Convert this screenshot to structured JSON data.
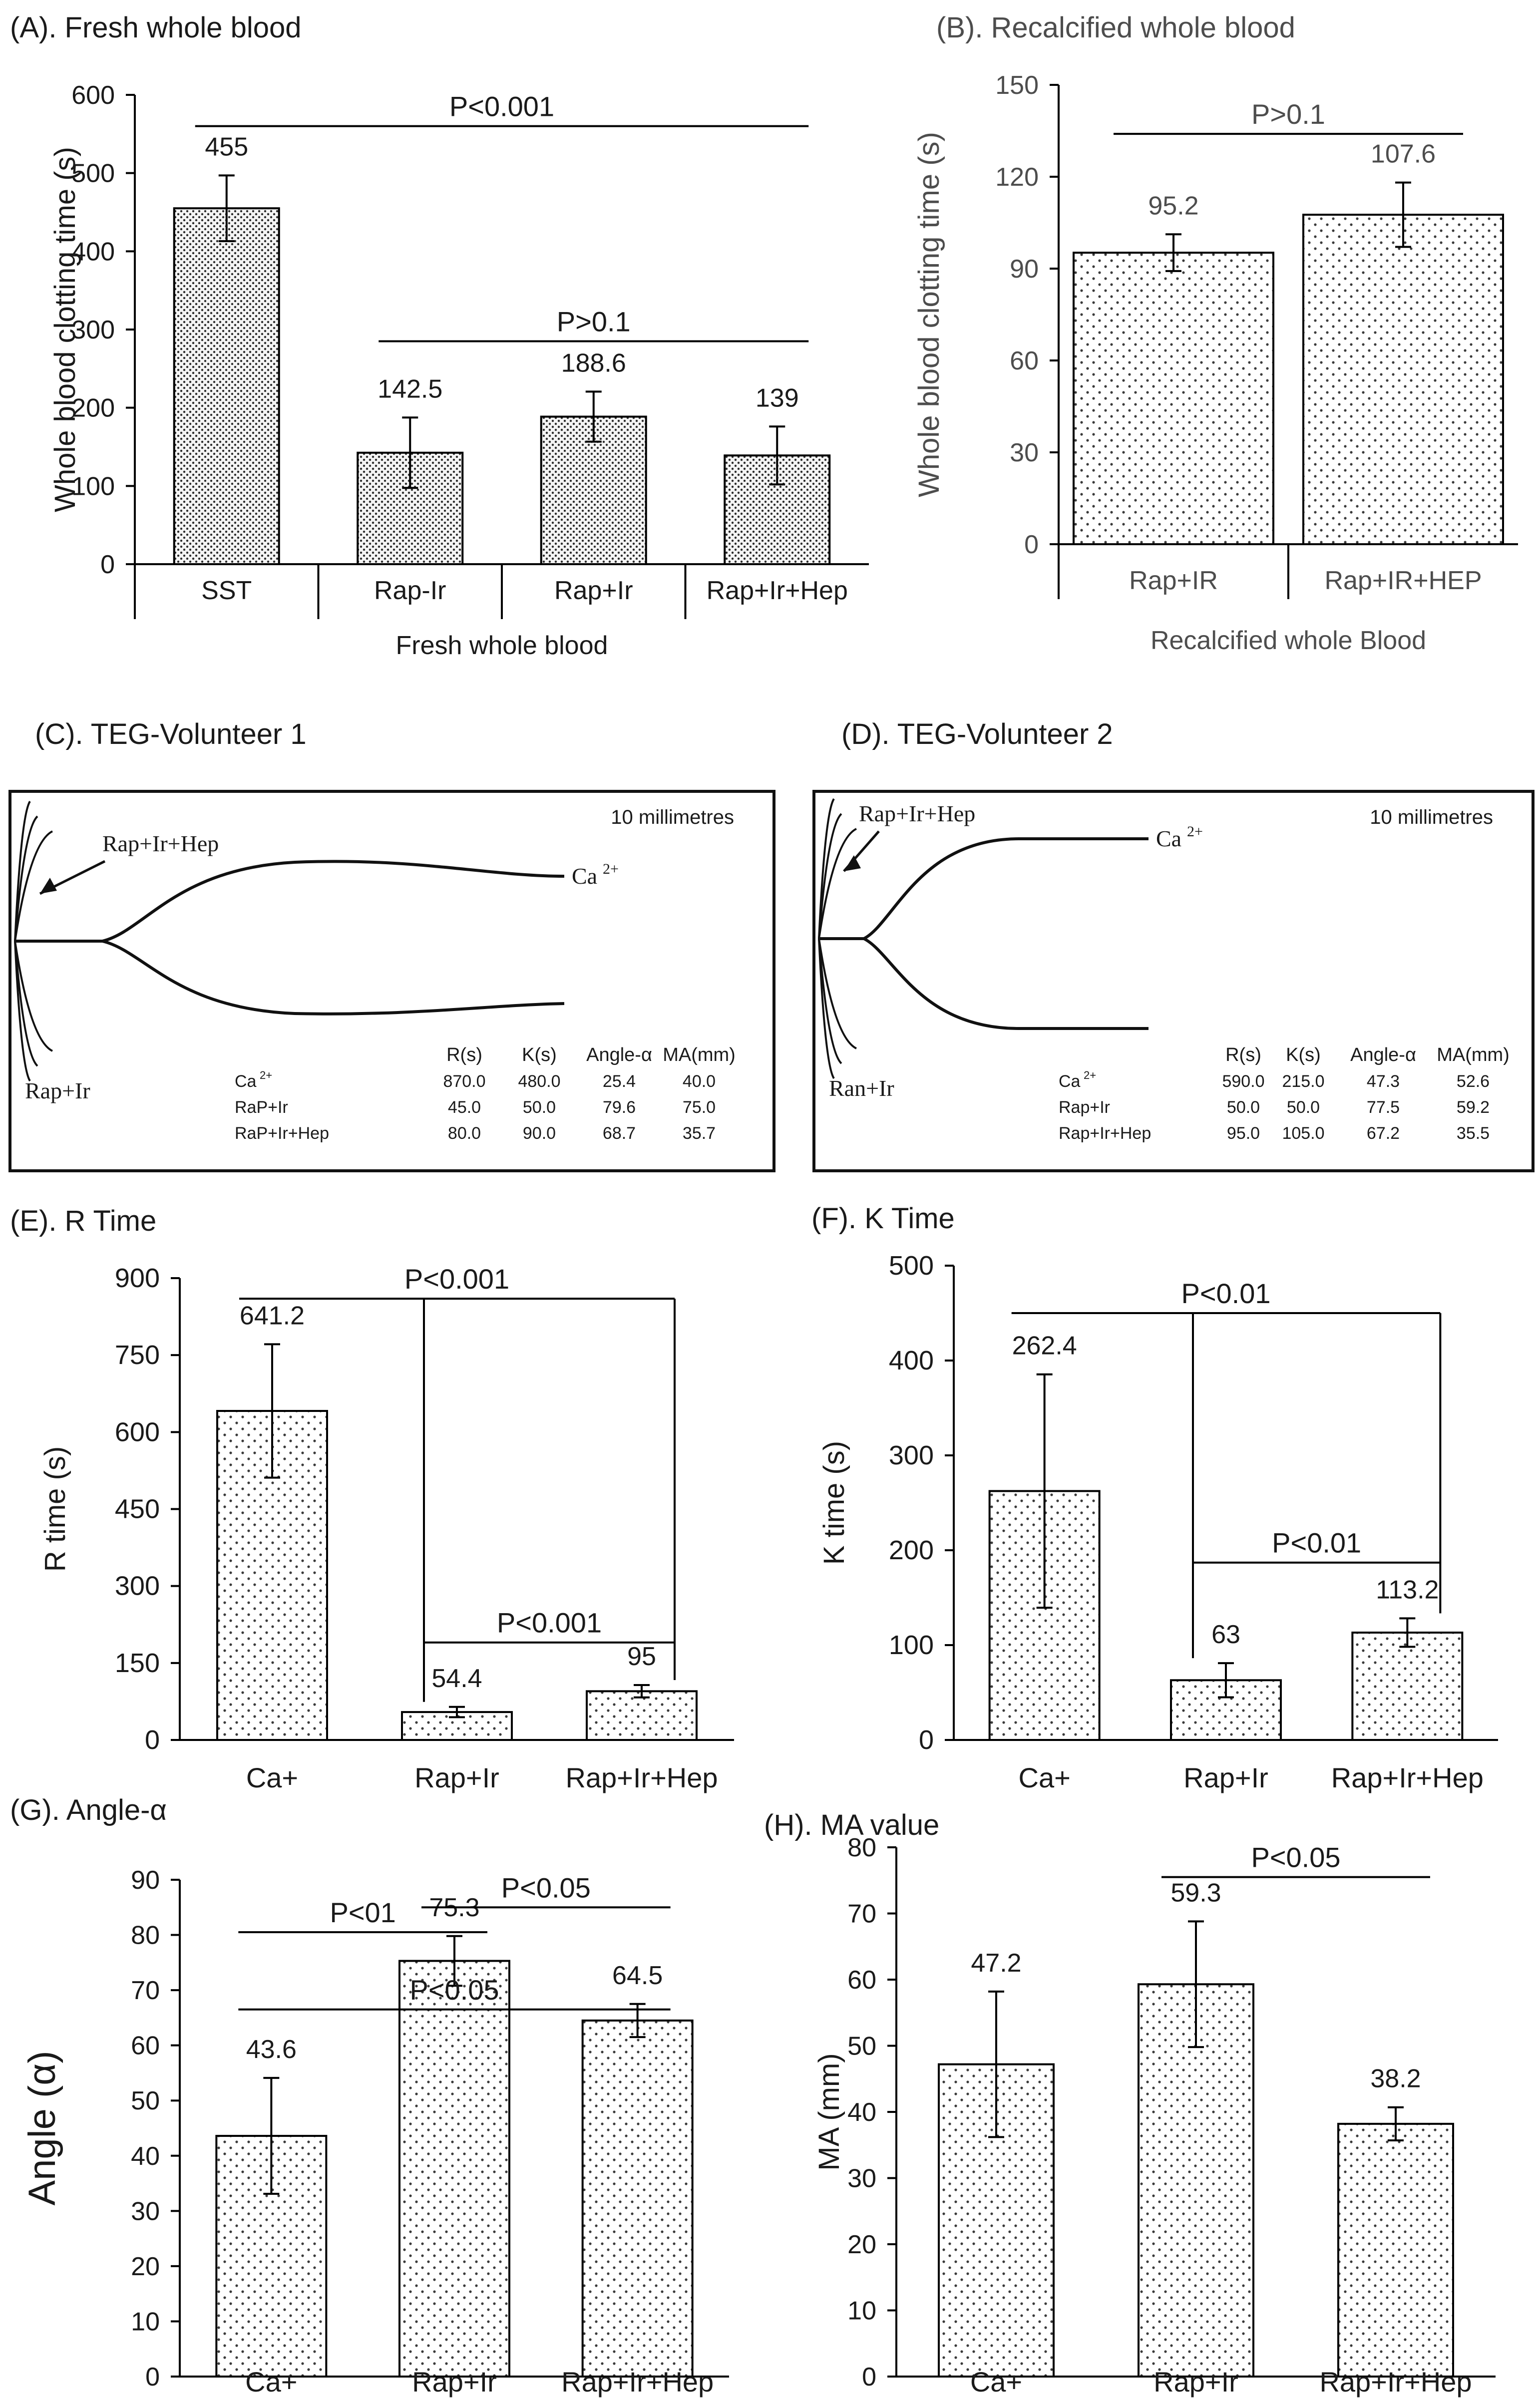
{
  "chart_data": [
    {
      "id": "A",
      "type": "bar",
      "title": "(A). Fresh whole blood",
      "xlabel": "Fresh whole blood",
      "ylabel": "Whole blood clotting time (s)",
      "ylim": [
        0,
        600
      ],
      "yticks": [
        "0",
        "100",
        "200",
        "300",
        "400",
        "500",
        "600"
      ],
      "categories": [
        "SST",
        "Rap-Ir",
        "Rap+Ir",
        "Rap+Ir+Hep"
      ],
      "values": [
        455,
        142.5,
        188.6,
        139
      ],
      "errors": [
        42,
        45,
        32,
        37
      ],
      "value_labels": [
        "455",
        "142.5",
        "188.6",
        "139"
      ],
      "brackets": [
        {
          "label": "P<0.001",
          "from": 0,
          "to": 3,
          "level": 560
        },
        {
          "label": "P>0.1",
          "from": 1,
          "to": 3,
          "level": 285
        }
      ]
    },
    {
      "id": "B",
      "type": "bar",
      "title": "(B). Recalcified whole blood",
      "xlabel": "Recalcified whole Blood",
      "ylabel": "Whole blood clotting time (s)",
      "ylim": [
        0,
        150
      ],
      "yticks": [
        "0",
        "30",
        "60",
        "90",
        "120",
        "150"
      ],
      "categories": [
        "Rap+IR",
        "Rap+IR+HEP"
      ],
      "values": [
        95.2,
        107.6
      ],
      "errors": [
        6,
        10.5
      ],
      "value_labels": [
        "95.2",
        "107.6"
      ],
      "brackets": [
        {
          "label": "P>0.1",
          "from": 0,
          "to": 1,
          "level": 134
        }
      ]
    },
    {
      "id": "E",
      "type": "bar",
      "title": "(E).  R Time",
      "xlabel": "",
      "ylabel": "R time (s)",
      "ylim": [
        0,
        900
      ],
      "yticks": [
        "0",
        "150",
        "300",
        "450",
        "600",
        "750",
        "900"
      ],
      "categories": [
        "Ca+",
        "Rap+Ir",
        "Rap+Ir+Hep"
      ],
      "values": [
        641.2,
        54.4,
        95
      ],
      "errors": [
        130,
        10,
        12
      ],
      "value_labels": [
        "641.2",
        "54.4",
        "95"
      ],
      "brackets": [
        {
          "label": "P<0.001",
          "from": 0,
          "to": 2,
          "level": 860
        },
        {
          "label": "P<0.001",
          "from": 1,
          "to": 2,
          "level": 190
        }
      ]
    },
    {
      "id": "F",
      "type": "bar",
      "title": "(F).  K Time",
      "xlabel": "",
      "ylabel": "K time (s)",
      "ylim": [
        0,
        500
      ],
      "yticks": [
        "0",
        "100",
        "200",
        "300",
        "400",
        "500"
      ],
      "categories": [
        "Ca+",
        "Rap+Ir",
        "Rap+Ir+Hep"
      ],
      "values": [
        262.4,
        63,
        113.2
      ],
      "errors": [
        123,
        18,
        15
      ],
      "value_labels": [
        "262.4",
        "63",
        "113.2"
      ],
      "brackets": [
        {
          "label": "P<0.01",
          "from": 0,
          "to": 2,
          "level": 450
        },
        {
          "label": "P<0.01",
          "from": 1,
          "to": 2,
          "level": 187
        }
      ]
    },
    {
      "id": "G",
      "type": "bar",
      "title": "(G). Angle-α",
      "xlabel": "",
      "ylabel": "Angle (α)",
      "ylim": [
        0,
        90
      ],
      "yticks": [
        "0",
        "10",
        "20",
        "30",
        "40",
        "50",
        "60",
        "70",
        "80",
        "90"
      ],
      "categories": [
        "Ca+",
        "Rap+Ir",
        "Rap+Ir+Hep"
      ],
      "values": [
        43.6,
        75.3,
        64.5
      ],
      "errors": [
        10.5,
        4.5,
        3
      ],
      "value_labels": [
        "43.6",
        "75.3",
        "64.5"
      ],
      "brackets": [
        {
          "label": "P<01",
          "from": 0,
          "to": 1,
          "level": 80.5
        },
        {
          "label": "P<0.05",
          "from": 1,
          "to": 2,
          "level": 85
        },
        {
          "label": "P<0.05",
          "from": 0,
          "to": 2,
          "level": 66.5
        }
      ]
    },
    {
      "id": "H",
      "type": "bar",
      "title": "(H). MA value",
      "xlabel": "",
      "ylabel": "MA (mm)",
      "ylim": [
        0,
        80
      ],
      "yticks": [
        "0",
        "10",
        "20",
        "30",
        "40",
        "50",
        "60",
        "70",
        "80"
      ],
      "categories": [
        "Ca+",
        "Rap+Ir",
        "Rap+Ir+Hep"
      ],
      "values": [
        47.2,
        59.3,
        38.2
      ],
      "errors": [
        11,
        9.5,
        2.5
      ],
      "value_labels": [
        "47.2",
        "59.3",
        "38.2"
      ],
      "brackets": [
        {
          "label": "P<0.05",
          "from": 1,
          "to": 2,
          "level": 75.5
        }
      ]
    }
  ],
  "teg": [
    {
      "id": "C",
      "title": "(C). TEG-Volunteer 1",
      "scale_label": "10 millimetres",
      "label_ca": "Ca",
      "label_ca_sup": "2+",
      "label_hep": "Rap+Ir+Hep",
      "label_ir": "Rap+Ir",
      "table_headers": [
        "R(s)",
        "K(s)",
        "Angle-α",
        "MA(mm)"
      ],
      "rows": [
        {
          "label": "Ca",
          "sup": "2+",
          "values": [
            "870.0",
            "480.0",
            "25.4",
            "40.0"
          ]
        },
        {
          "label": "RaP+Ir",
          "sup": "",
          "values": [
            "45.0",
            "50.0",
            "79.6",
            "75.0"
          ]
        },
        {
          "label": "RaP+Ir+Hep",
          "sup": "",
          "values": [
            "80.0",
            "90.0",
            "68.7",
            "35.7"
          ]
        }
      ]
    },
    {
      "id": "D",
      "title": "(D). TEG-Volunteer 2",
      "scale_label": "10 millimetres",
      "label_ca": "Ca",
      "label_ca_sup": "2+",
      "label_hep": "Rap+Ir+Hep",
      "label_ir": "Ran+Ir",
      "table_headers": [
        "R(s)",
        "K(s)",
        "Angle-α",
        "MA(mm)"
      ],
      "rows": [
        {
          "label": "Ca",
          "sup": "2+",
          "values": [
            "590.0",
            "215.0",
            "47.3",
            "52.6"
          ]
        },
        {
          "label": "Rap+Ir",
          "sup": "",
          "values": [
            "50.0",
            "50.0",
            "77.5",
            "59.2"
          ]
        },
        {
          "label": "Rap+Ir+Hep",
          "sup": "",
          "values": [
            "95.0",
            "105.0",
            "67.2",
            "35.5"
          ]
        }
      ]
    }
  ]
}
